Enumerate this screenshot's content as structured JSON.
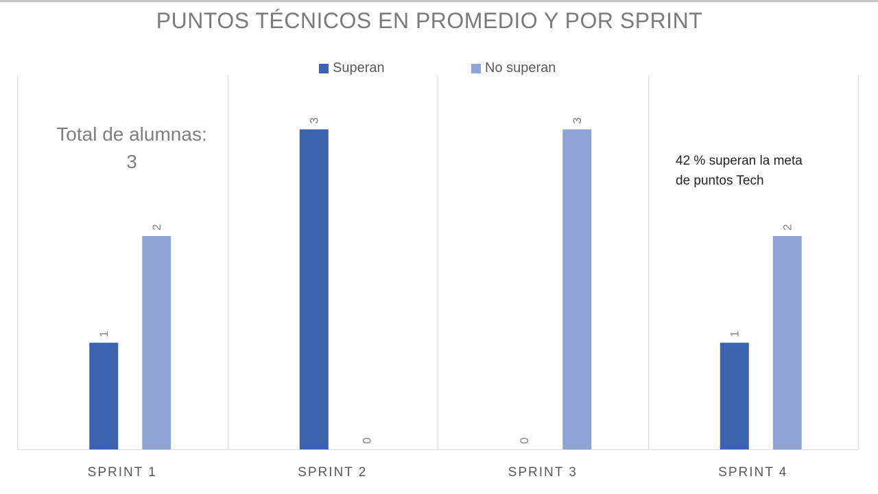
{
  "chart_data": {
    "type": "bar",
    "title": "PUNTOS TÉCNICOS EN PROMEDIO Y POR SPRINT",
    "categories": [
      "SPRINT 1",
      "SPRINT 2",
      "SPRINT 3",
      "SPRINT 4"
    ],
    "series": [
      {
        "name": "Superan",
        "values": [
          1,
          3,
          0,
          1
        ],
        "color": "#3b62ac"
      },
      {
        "name": "No superan",
        "values": [
          2,
          0,
          3,
          2
        ],
        "color": "#8fa3d4"
      }
    ],
    "ylim": [
      0,
      3.2
    ],
    "xlabel": "",
    "ylabel": "",
    "grid": false,
    "legend_position": "top",
    "data_labels": true
  },
  "annotations": {
    "total_line1": "Total de alumnas:",
    "total_line2": "3",
    "meta_line1": "42 %  superan la meta",
    "meta_line2": "de puntos Tech"
  }
}
